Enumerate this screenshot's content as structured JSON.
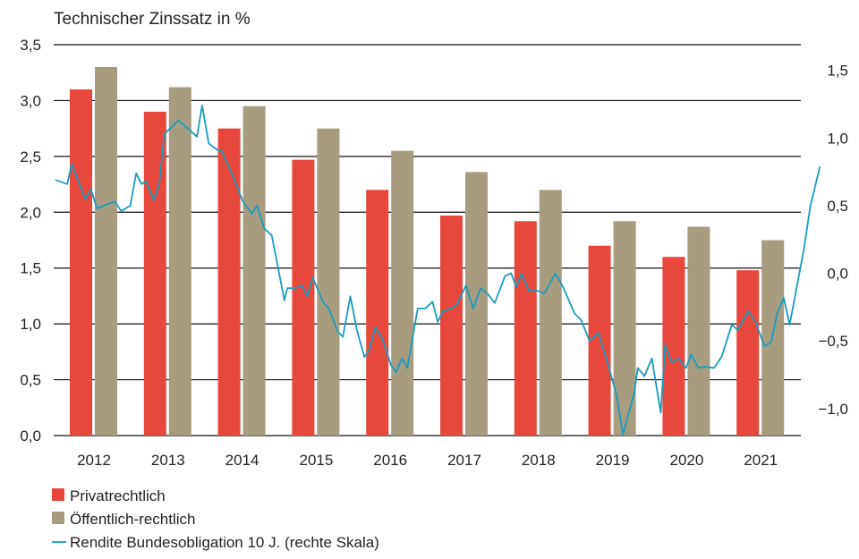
{
  "chart_data": {
    "type": "bar",
    "title": "Technischer Zinssatz in %",
    "categories": [
      "2012",
      "2013",
      "2014",
      "2015",
      "2016",
      "2017",
      "2018",
      "2019",
      "2020",
      "2021"
    ],
    "ylim": [
      0,
      3.5
    ],
    "y_ticks": [
      "0,0",
      "0,5",
      "1,0",
      "1,5",
      "2,0",
      "2,5",
      "3,0",
      "3,5"
    ],
    "y_tick_values": [
      0,
      0.5,
      1,
      1.5,
      2,
      2.5,
      3,
      3.5
    ],
    "y2lim": [
      -1.2,
      1.69
    ],
    "y2_ticks": [
      "−1,0",
      "−0,5",
      "0,0",
      "0,5",
      "1,0",
      "1,5"
    ],
    "y2_tick_values": [
      -1,
      -0.5,
      0,
      0.5,
      1,
      1.5
    ],
    "grid": true,
    "legend_position": "bottom-left",
    "series": [
      {
        "name": "Privatrechtlich",
        "type": "bar",
        "color": "#e8483c",
        "values": [
          3.1,
          2.9,
          2.75,
          2.47,
          2.2,
          1.97,
          1.92,
          1.7,
          1.6,
          1.48
        ]
      },
      {
        "name": "Öffentlich-rechtlich",
        "type": "bar",
        "color": "#a89c80",
        "values": [
          3.3,
          3.12,
          2.95,
          2.75,
          2.55,
          2.36,
          2.2,
          1.92,
          1.87,
          1.75
        ]
      },
      {
        "name": "Rendite Bundesobligation 10 J. (rechte Skala)",
        "type": "line",
        "axis": "right",
        "color": "#1a9bc0",
        "x": [
          2011.98,
          2012.14,
          2012.2,
          2012.38,
          2012.46,
          2012.54,
          2012.68,
          2012.78,
          2012.87,
          2012.99,
          2013.07,
          2013.14,
          2013.2,
          2013.31,
          2013.38,
          2013.45,
          2013.64,
          2013.79,
          2013.89,
          2013.96,
          2014.05,
          2014.17,
          2014.22,
          2014.39,
          2014.51,
          2014.63,
          2014.7,
          2014.8,
          2014.9,
          2015.07,
          2015.11,
          2015.21,
          2015.31,
          2015.38,
          2015.45,
          2015.6,
          2015.67,
          2015.79,
          2015.86,
          2015.96,
          2016.05,
          2016.15,
          2016.22,
          2016.3,
          2016.39,
          2016.51,
          2016.58,
          2016.66,
          2016.73,
          2016.87,
          2016.97,
          2017.07,
          2017.14,
          2017.21,
          2017.32,
          2017.4,
          2017.52,
          2017.62,
          2017.72,
          2017.81,
          2017.91,
          2018.05,
          2018.13,
          2018.2,
          2018.27,
          2018.37,
          2018.49,
          2018.58,
          2018.73,
          2018.83,
          2018.99,
          2019.07,
          2019.19,
          2019.31,
          2019.43,
          2019.55,
          2019.64,
          2019.79,
          2019.84,
          2019.93,
          2020.03,
          2020.15,
          2020.21,
          2020.3,
          2020.39,
          2020.49,
          2020.56,
          2020.66,
          2020.75,
          2020.87,
          2020.97,
          2021.11,
          2021.19,
          2021.33,
          2021.43,
          2021.55,
          2021.64,
          2021.72,
          2021.81,
          2021.89,
          2022.08,
          2022.17,
          2022.3
        ],
        "y": [
          0.69,
          0.66,
          0.81,
          0.55,
          0.62,
          0.48,
          0.51,
          0.53,
          0.46,
          0.5,
          0.74,
          0.66,
          0.68,
          0.54,
          0.66,
          1.03,
          1.13,
          1.06,
          1.01,
          1.24,
          0.96,
          0.91,
          0.91,
          0.7,
          0.53,
          0.44,
          0.5,
          0.33,
          0.28,
          -0.2,
          -0.11,
          -0.11,
          -0.09,
          -0.17,
          -0.03,
          -0.22,
          -0.26,
          -0.43,
          -0.47,
          -0.17,
          -0.42,
          -0.62,
          -0.56,
          -0.4,
          -0.48,
          -0.68,
          -0.73,
          -0.63,
          -0.7,
          -0.26,
          -0.26,
          -0.21,
          -0.36,
          -0.28,
          -0.26,
          -0.23,
          -0.09,
          -0.26,
          -0.11,
          -0.15,
          -0.22,
          -0.02,
          0.0,
          -0.1,
          0.0,
          -0.13,
          -0.13,
          -0.15,
          0.0,
          -0.1,
          -0.3,
          -0.34,
          -0.5,
          -0.44,
          -0.66,
          -0.89,
          -1.19,
          -0.89,
          -0.7,
          -0.76,
          -0.63,
          -1.03,
          -0.53,
          -0.66,
          -0.63,
          -0.7,
          -0.6,
          -0.7,
          -0.69,
          -0.7,
          -0.62,
          -0.38,
          -0.42,
          -0.28,
          -0.36,
          -0.54,
          -0.51,
          -0.3,
          -0.18,
          -0.38,
          0.17,
          0.5,
          0.79
        ]
      }
    ]
  }
}
